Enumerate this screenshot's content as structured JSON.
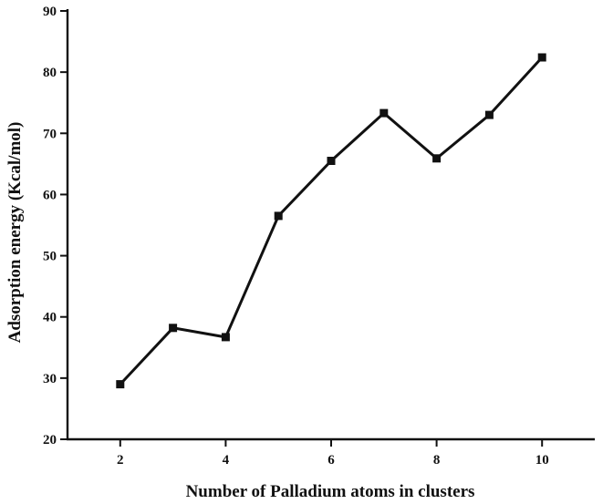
{
  "chart_data": {
    "type": "line",
    "title": "",
    "xlabel": "Number of Palladium atoms in clusters",
    "ylabel": "Adsorption energy (Kcal/mol)",
    "xlim": [
      1,
      11
    ],
    "ylim": [
      20,
      90
    ],
    "xticks": [
      2,
      4,
      6,
      8,
      10
    ],
    "yticks": [
      20,
      30,
      40,
      50,
      60,
      70,
      80,
      90
    ],
    "grid": false,
    "legend": "none",
    "marker": "square",
    "color": "#111111",
    "series": [
      {
        "x": [
          2,
          3,
          4,
          5,
          6,
          7,
          8,
          9,
          10
        ],
        "values": [
          29.0,
          38.2,
          36.7,
          56.5,
          65.5,
          73.3,
          65.9,
          73.0,
          82.4
        ]
      }
    ]
  }
}
